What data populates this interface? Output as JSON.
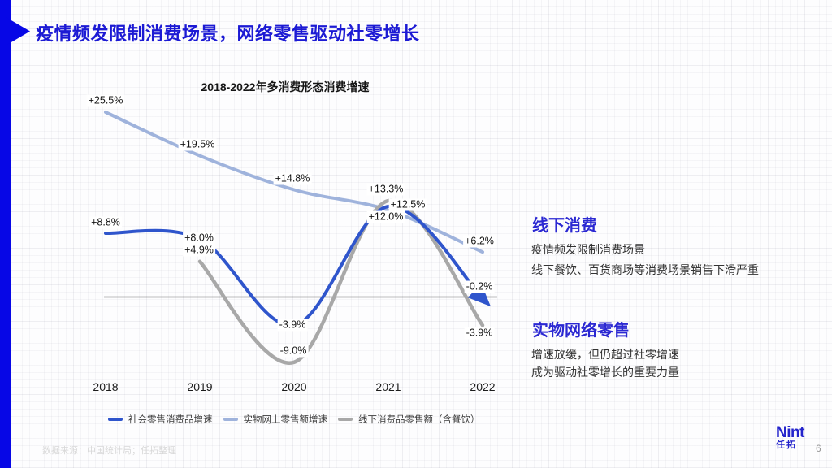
{
  "slide": {
    "title": "疫情频发限制消费场景，网络零售驱动社零增长",
    "footer_source": "数据来源：中国统计局；任拓整理",
    "page_number": "6",
    "logo": {
      "name": "Nint",
      "sub": "任拓"
    },
    "accent_color": "#0707e6",
    "title_color": "#1c1ad4",
    "heading_color": "#2b28d2"
  },
  "chart_data": {
    "type": "line",
    "title": "2018-2022年多消费形态消费增速",
    "categories": [
      "2018",
      "2019",
      "2020",
      "2021",
      "2022"
    ],
    "series": [
      {
        "name": "社会零售消费品增速",
        "color": "#2f55cc",
        "values": [
          8.8,
          8.0,
          -3.9,
          12.5,
          -0.2
        ],
        "labels": [
          "+8.8%",
          "+8.0%",
          "-3.9%",
          "+12.5%",
          "-0.2%"
        ]
      },
      {
        "name": "实物网上零售额增速",
        "color": "#9fb3dc",
        "values": [
          25.5,
          19.5,
          14.8,
          12.0,
          6.2
        ],
        "labels": [
          "+25.5%",
          "+19.5%",
          "+14.8%",
          "+12.0%",
          "+6.2%"
        ]
      },
      {
        "name": "线下消费品零售额（含餐饮）",
        "color": "#a8a8a8",
        "values": [
          null,
          4.9,
          -9.0,
          13.3,
          -3.9
        ],
        "labels": [
          "",
          "+4.9%",
          "-9.0%",
          "+13.3%",
          "-3.9%"
        ]
      }
    ],
    "baseline_value": 0,
    "y_axis_visible": false,
    "grid": false,
    "legend_position": "bottom"
  },
  "insights": [
    {
      "heading": "线下消费",
      "lines": [
        "疫情频发限制消费场景",
        "线下餐饮、百货商场等消费场景销售下滑严重"
      ]
    },
    {
      "heading": "实物网络零售",
      "lines": [
        "增速放缓，但仍超过社零增速",
        "成为驱动社零增长的重要力量"
      ]
    }
  ]
}
